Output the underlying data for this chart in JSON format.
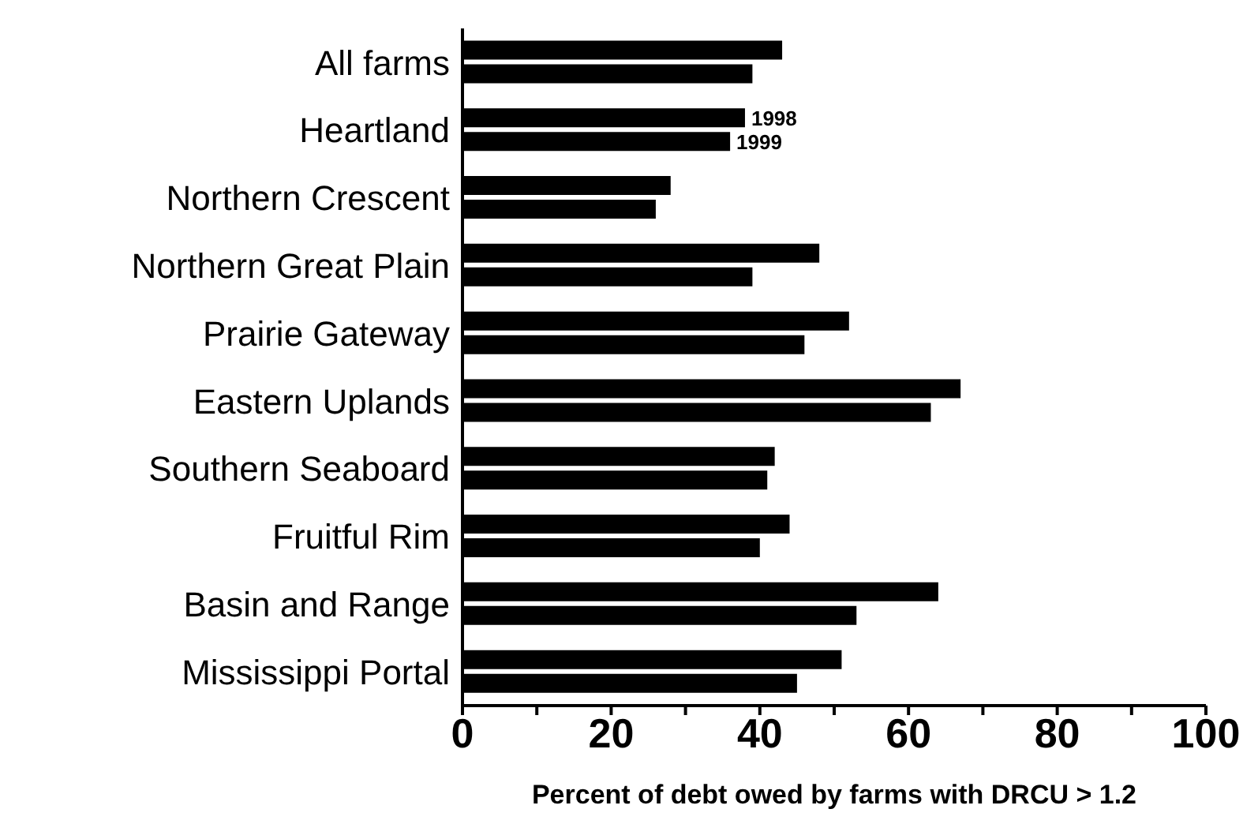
{
  "chart_data": {
    "type": "bar",
    "orientation": "horizontal",
    "xlabel": "Percent of debt owed by farms with DRCU > 1.2",
    "categories": [
      "All farms",
      "Heartland",
      "Northern Crescent",
      "Northern Great Plain",
      "Prairie Gateway",
      "Eastern Uplands",
      "Southern Seaboard",
      "Fruitful Rim",
      "Basin and Range",
      "Mississippi Portal"
    ],
    "series": [
      {
        "name": "1998",
        "color": "#000000",
        "values": [
          43,
          38,
          28,
          48,
          52,
          67,
          42,
          44,
          64,
          51
        ]
      },
      {
        "name": "1999",
        "color": "#000000",
        "values": [
          39,
          36,
          26,
          39,
          46,
          63,
          41,
          40,
          53,
          45
        ]
      }
    ],
    "xlim": [
      0,
      100
    ],
    "xticks": [
      0,
      {
        "value": 10,
        "label": null
      },
      20,
      {
        "value": 30,
        "label": null
      },
      40,
      {
        "value": 50,
        "label": null
      },
      60,
      {
        "value": 70,
        "label": null
      },
      80,
      {
        "value": 90,
        "label": null
      },
      100
    ],
    "grid": false,
    "legend": false
  }
}
